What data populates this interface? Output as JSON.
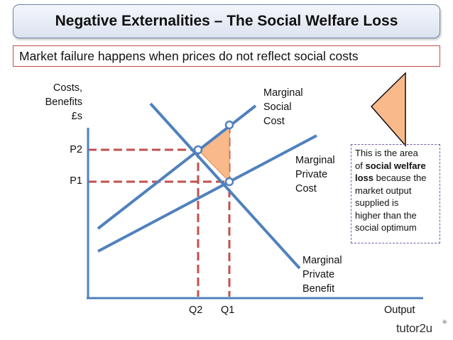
{
  "title": "Negative Externalities – The Social Welfare Loss",
  "subtitle": "Market failure happens when prices do not reflect social costs",
  "axis": {
    "y_label_lines": [
      "Costs,",
      "Benefits",
      "£s"
    ],
    "x_label": "Output"
  },
  "prices": {
    "p2": "P2",
    "p1": "P1"
  },
  "quantities": {
    "q2": "Q2",
    "q1": "Q1"
  },
  "curves": {
    "msc_lines": [
      "Marginal",
      "Social",
      "Cost"
    ],
    "mpc_lines": [
      "Marginal",
      "Private",
      "Cost"
    ],
    "mpb_lines": [
      "Marginal",
      "Private",
      "Benefit"
    ]
  },
  "info": {
    "line1": "This is the area",
    "line2_pre": "of ",
    "line2_bold": "social welfare",
    "line3_bold": "loss",
    "line3_post": " because the",
    "line4": "market output",
    "line5": "supplied is",
    "line6": "higher than the",
    "line7": "social optimum"
  },
  "logo": "tutor2u",
  "colors": {
    "curve": "#4f81bd",
    "dashed": "#c0504d",
    "welfare_loss_fill": "#f9b98a",
    "info_border": "#7a5d9e"
  }
}
